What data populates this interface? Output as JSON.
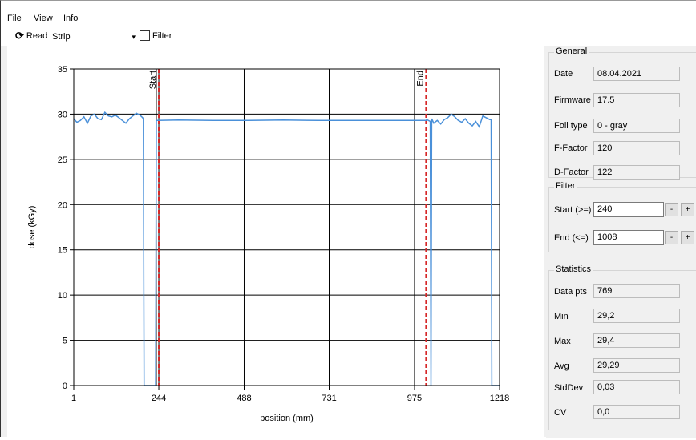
{
  "menu": {
    "file": "File",
    "view": "View",
    "info": "Info"
  },
  "toolbar": {
    "read_label": "Read",
    "mode_value": "Strip",
    "filter_label": "Filter"
  },
  "chart_data": {
    "type": "line",
    "xlabel": "position (mm)",
    "ylabel": "dose (kGy)",
    "xlim": [
      1,
      1218
    ],
    "ylim": [
      0,
      35
    ],
    "xticks": [
      1,
      244,
      488,
      731,
      975,
      1218
    ],
    "yticks": [
      0,
      5,
      10,
      15,
      20,
      25,
      30,
      35
    ],
    "grid": true,
    "series": [
      {
        "color": "#4a90d9",
        "x": [
          1,
          10,
          20,
          30,
          40,
          50,
          60,
          70,
          80,
          90,
          100,
          110,
          120,
          130,
          140,
          150,
          160,
          170,
          180,
          190,
          198,
          200,
          202,
          235,
          237,
          240,
          300,
          400,
          500,
          600,
          700,
          800,
          900,
          1000,
          1008,
          1010,
          1020,
          1022,
          1024,
          1030,
          1040,
          1050,
          1060,
          1070,
          1080,
          1090,
          1100,
          1110,
          1120,
          1130,
          1140,
          1150,
          1160,
          1170,
          1180,
          1190,
          1194,
          1196,
          1218
        ],
        "y": [
          29.5,
          29.1,
          29.3,
          29.7,
          29.0,
          29.8,
          30.0,
          29.5,
          29.4,
          30.2,
          29.8,
          29.7,
          29.9,
          29.6,
          29.3,
          29.0,
          29.5,
          29.8,
          30.1,
          29.9,
          29.6,
          29.4,
          0,
          0,
          29.3,
          29.3,
          29.35,
          29.3,
          29.3,
          29.35,
          29.3,
          29.3,
          29.3,
          29.3,
          29.3,
          29.4,
          29.2,
          0,
          29.5,
          29.0,
          29.3,
          28.9,
          29.4,
          29.6,
          30.0,
          29.7,
          29.3,
          29.1,
          29.5,
          29.0,
          28.7,
          29.2,
          28.6,
          29.8,
          29.6,
          29.4,
          29.4,
          0,
          0
        ]
      }
    ],
    "markers": [
      {
        "label": "Start",
        "x": 244,
        "color": "#d62728"
      },
      {
        "label": "End",
        "x": 1008,
        "color": "#d62728"
      }
    ],
    "guide_lines": [
      237,
      975
    ]
  },
  "general": {
    "title": "General",
    "date_label": "Date",
    "date_value": "08.04.2021",
    "firmware_label": "Firmware",
    "firmware_value": "17.5",
    "foil_label": "Foil type",
    "foil_value": "0 - gray",
    "ffactor_label": "F-Factor",
    "ffactor_value": "120",
    "dfactor_label": "D-Factor",
    "dfactor_value": "122"
  },
  "filter": {
    "title": "Filter",
    "start_label": "Start (>=)",
    "start_value": "240",
    "end_label": "End  (<=)",
    "end_value": "1008",
    "minus": "-",
    "plus": "+"
  },
  "statistics": {
    "title": "Statistics",
    "datapts_label": "Data pts",
    "datapts_value": "769",
    "min_label": "Min",
    "min_value": "29,2",
    "max_label": "Max",
    "max_value": "29,4",
    "avg_label": "Avg",
    "avg_value": "29,29",
    "stddev_label": "StdDev",
    "stddev_value": "0,03",
    "cv_label": "CV",
    "cv_value": "0,0"
  }
}
